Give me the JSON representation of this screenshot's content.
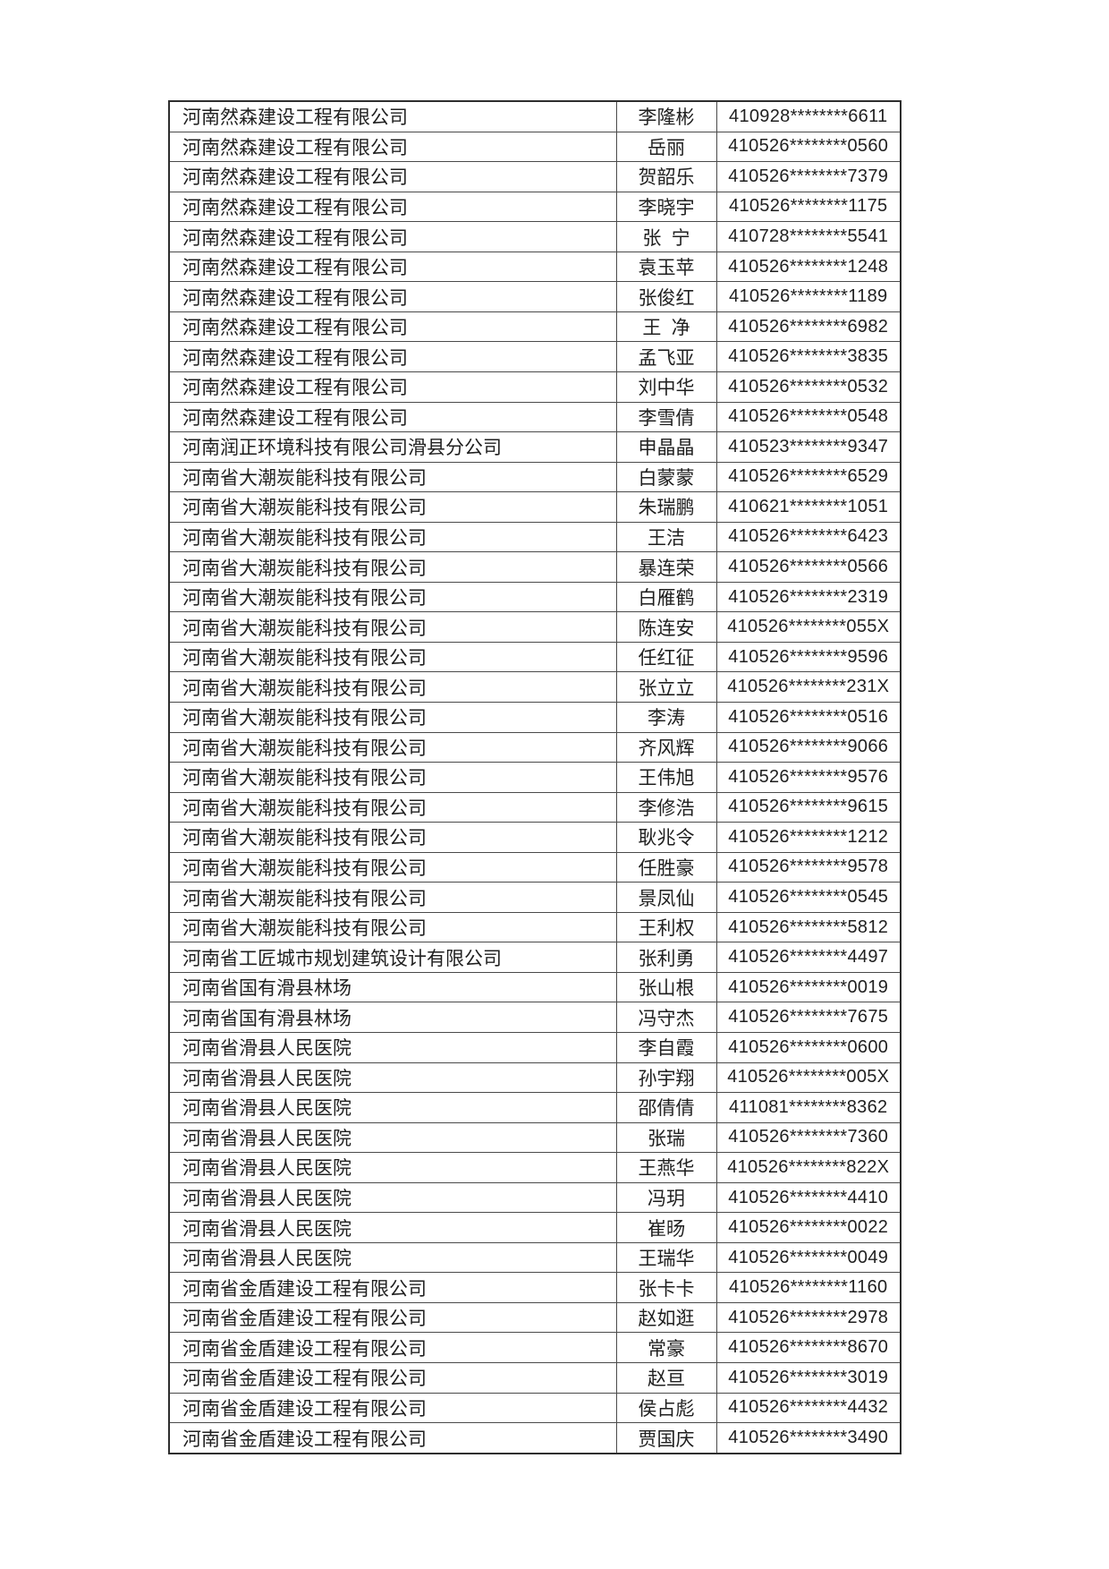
{
  "page": {
    "background_color": "#ffffff",
    "text_color": "#1f1f1f",
    "border_color": "#4a4a4a"
  },
  "table": {
    "rows": [
      {
        "company": "河南然森建设工程有限公司",
        "name": "李隆彬",
        "id": "410928********6611"
      },
      {
        "company": "河南然森建设工程有限公司",
        "name": "岳丽",
        "id": "410526********0560"
      },
      {
        "company": "河南然森建设工程有限公司",
        "name": "贺韶乐",
        "id": "410526********7379"
      },
      {
        "company": "河南然森建设工程有限公司",
        "name": "李晓宇",
        "id": "410526********1175"
      },
      {
        "company": "河南然森建设工程有限公司",
        "name": "张 宁",
        "id": "410728********5541"
      },
      {
        "company": "河南然森建设工程有限公司",
        "name": "袁玉苹",
        "id": "410526********1248"
      },
      {
        "company": "河南然森建设工程有限公司",
        "name": "张俊红",
        "id": "410526********1189"
      },
      {
        "company": "河南然森建设工程有限公司",
        "name": "王 净",
        "id": "410526********6982"
      },
      {
        "company": "河南然森建设工程有限公司",
        "name": "孟飞亚",
        "id": "410526********3835"
      },
      {
        "company": "河南然森建设工程有限公司",
        "name": "刘中华",
        "id": "410526********0532"
      },
      {
        "company": "河南然森建设工程有限公司",
        "name": "李雪倩",
        "id": "410526********0548"
      },
      {
        "company": "河南润正环境科技有限公司滑县分公司",
        "name": "申晶晶",
        "id": "410523********9347"
      },
      {
        "company": "河南省大潮炭能科技有限公司",
        "name": "白蒙蒙",
        "id": "410526********6529"
      },
      {
        "company": "河南省大潮炭能科技有限公司",
        "name": "朱瑞鹏",
        "id": "410621********1051"
      },
      {
        "company": "河南省大潮炭能科技有限公司",
        "name": "王洁",
        "id": "410526********6423"
      },
      {
        "company": "河南省大潮炭能科技有限公司",
        "name": "暴连荣",
        "id": "410526********0566"
      },
      {
        "company": "河南省大潮炭能科技有限公司",
        "name": "白雁鹤",
        "id": "410526********2319"
      },
      {
        "company": "河南省大潮炭能科技有限公司",
        "name": "陈连安",
        "id": "410526********055X"
      },
      {
        "company": "河南省大潮炭能科技有限公司",
        "name": "任红征",
        "id": "410526********9596"
      },
      {
        "company": "河南省大潮炭能科技有限公司",
        "name": "张立立",
        "id": "410526********231X"
      },
      {
        "company": "河南省大潮炭能科技有限公司",
        "name": "李涛",
        "id": "410526********0516"
      },
      {
        "company": "河南省大潮炭能科技有限公司",
        "name": "齐风辉",
        "id": "410526********9066"
      },
      {
        "company": "河南省大潮炭能科技有限公司",
        "name": "王伟旭",
        "id": "410526********9576"
      },
      {
        "company": "河南省大潮炭能科技有限公司",
        "name": "李修浩",
        "id": "410526********9615"
      },
      {
        "company": "河南省大潮炭能科技有限公司",
        "name": "耿兆令",
        "id": "410526********1212"
      },
      {
        "company": "河南省大潮炭能科技有限公司",
        "name": "任胜豪",
        "id": "410526********9578"
      },
      {
        "company": "河南省大潮炭能科技有限公司",
        "name": "景凤仙",
        "id": "410526********0545"
      },
      {
        "company": "河南省大潮炭能科技有限公司",
        "name": "王利权",
        "id": "410526********5812"
      },
      {
        "company": "河南省工匠城市规划建筑设计有限公司",
        "name": "张利勇",
        "id": "410526********4497"
      },
      {
        "company": "河南省国有滑县林场",
        "name": "张山根",
        "id": "410526********0019"
      },
      {
        "company": "河南省国有滑县林场",
        "name": "冯守杰",
        "id": "410526********7675"
      },
      {
        "company": "河南省滑县人民医院",
        "name": "李自霞",
        "id": "410526********0600"
      },
      {
        "company": "河南省滑县人民医院",
        "name": "孙宇翔",
        "id": "410526********005X"
      },
      {
        "company": "河南省滑县人民医院",
        "name": "邵倩倩",
        "id": "411081********8362"
      },
      {
        "company": "河南省滑县人民医院",
        "name": "张瑞",
        "id": "410526********7360"
      },
      {
        "company": "河南省滑县人民医院",
        "name": "王燕华",
        "id": "410526********822X"
      },
      {
        "company": "河南省滑县人民医院",
        "name": "冯玥",
        "id": "410526********4410"
      },
      {
        "company": "河南省滑县人民医院",
        "name": "崔旸",
        "id": "410526********0022"
      },
      {
        "company": "河南省滑县人民医院",
        "name": "王瑞华",
        "id": "410526********0049"
      },
      {
        "company": "河南省金盾建设工程有限公司",
        "name": "张卡卡",
        "id": "410526********1160"
      },
      {
        "company": "河南省金盾建设工程有限公司",
        "name": "赵如逛",
        "id": "410526********2978"
      },
      {
        "company": "河南省金盾建设工程有限公司",
        "name": "常豪",
        "id": "410526********8670"
      },
      {
        "company": "河南省金盾建设工程有限公司",
        "name": "赵亘",
        "id": "410526********3019"
      },
      {
        "company": "河南省金盾建设工程有限公司",
        "name": "侯占彪",
        "id": "410526********4432"
      },
      {
        "company": "河南省金盾建设工程有限公司",
        "name": "贾国庆",
        "id": "410526********3490"
      }
    ]
  }
}
